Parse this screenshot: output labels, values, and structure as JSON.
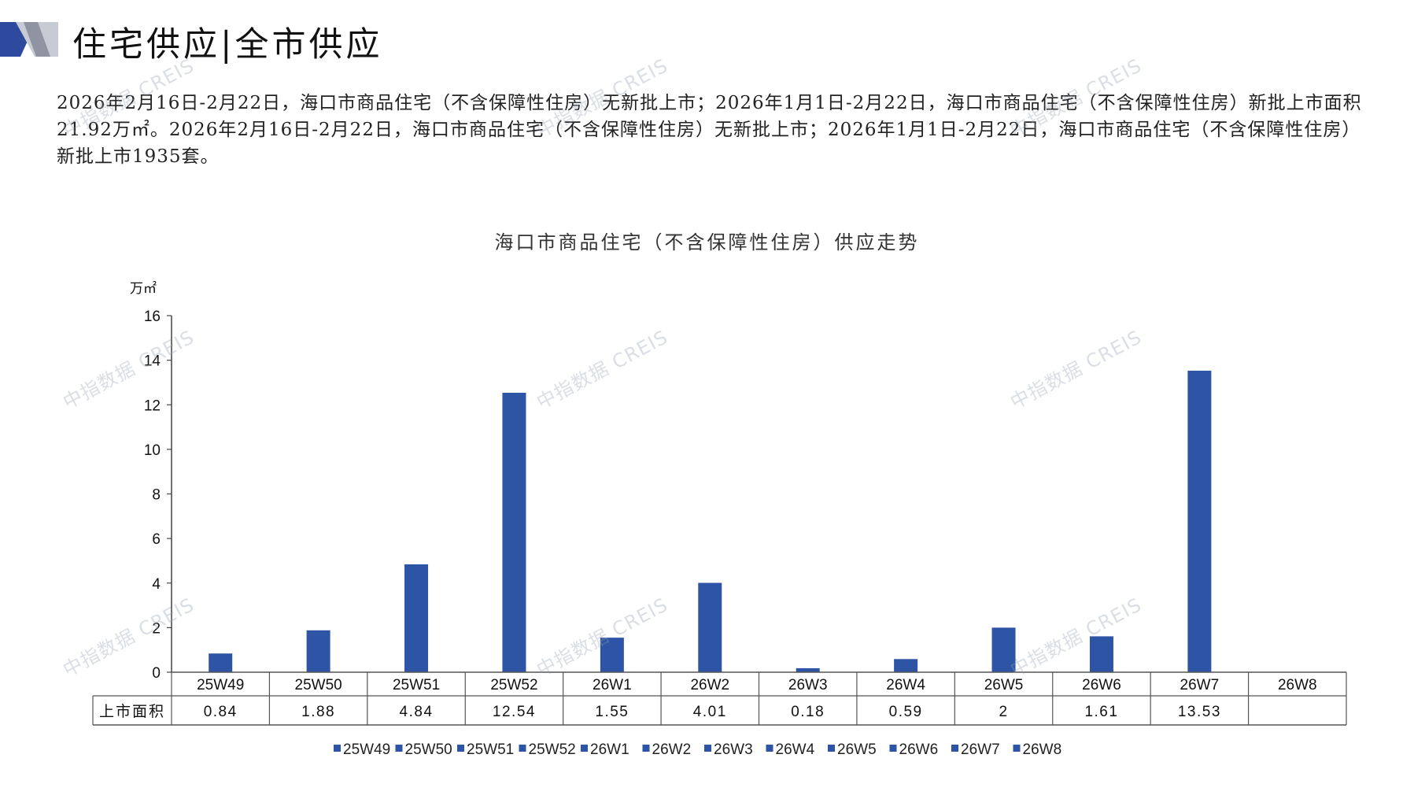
{
  "header": {
    "title": "住宅供应|全市供应"
  },
  "intro_text": "2026年2月16日-2月22日，海口市商品住宅（不含保障性住房）无新批上市；2026年1月1日-2月22日，海口市商品住宅（不含保障性住房）新批上市面积21.92万㎡。2026年2月16日-2月22日，海口市商品住宅（不含保障性住房）无新批上市；2026年1月1日-2月22日，海口市商品住宅（不含保障性住房）新批上市1935套。",
  "watermark_text": "中指数据 CREIS",
  "colors": {
    "bar": "#2E55A5",
    "accent_dark": "#2E4A9E",
    "accent_gray": "#B8BCC6"
  },
  "chart_data": {
    "type": "bar",
    "title": "海口市商品住宅（不含保障性住房）供应走势",
    "ylabel": "万㎡",
    "ylim": [
      0,
      16
    ],
    "yticks": [
      0,
      2,
      4,
      6,
      8,
      10,
      12,
      14,
      16
    ],
    "categories": [
      "25W49",
      "25W50",
      "25W51",
      "25W52",
      "26W1",
      "26W2",
      "26W3",
      "26W4",
      "26W5",
      "26W6",
      "26W7",
      "26W8"
    ],
    "series": [
      {
        "name": "上市面积",
        "values": [
          0.84,
          1.88,
          4.84,
          12.54,
          1.55,
          4.01,
          0.18,
          0.59,
          2,
          1.61,
          13.53,
          null
        ],
        "labels": [
          "0.84",
          "1.88",
          "4.84",
          "12.54",
          "1.55",
          "4.01",
          "0.18",
          "0.59",
          "2",
          "1.61",
          "13.53",
          ""
        ]
      }
    ],
    "legend": [
      "25W49",
      "25W50",
      "25W51",
      "25W52",
      "26W1",
      "26W2",
      "26W3",
      "26W4",
      "26W5",
      "26W6",
      "26W7",
      "26W8"
    ],
    "data_table": true
  }
}
